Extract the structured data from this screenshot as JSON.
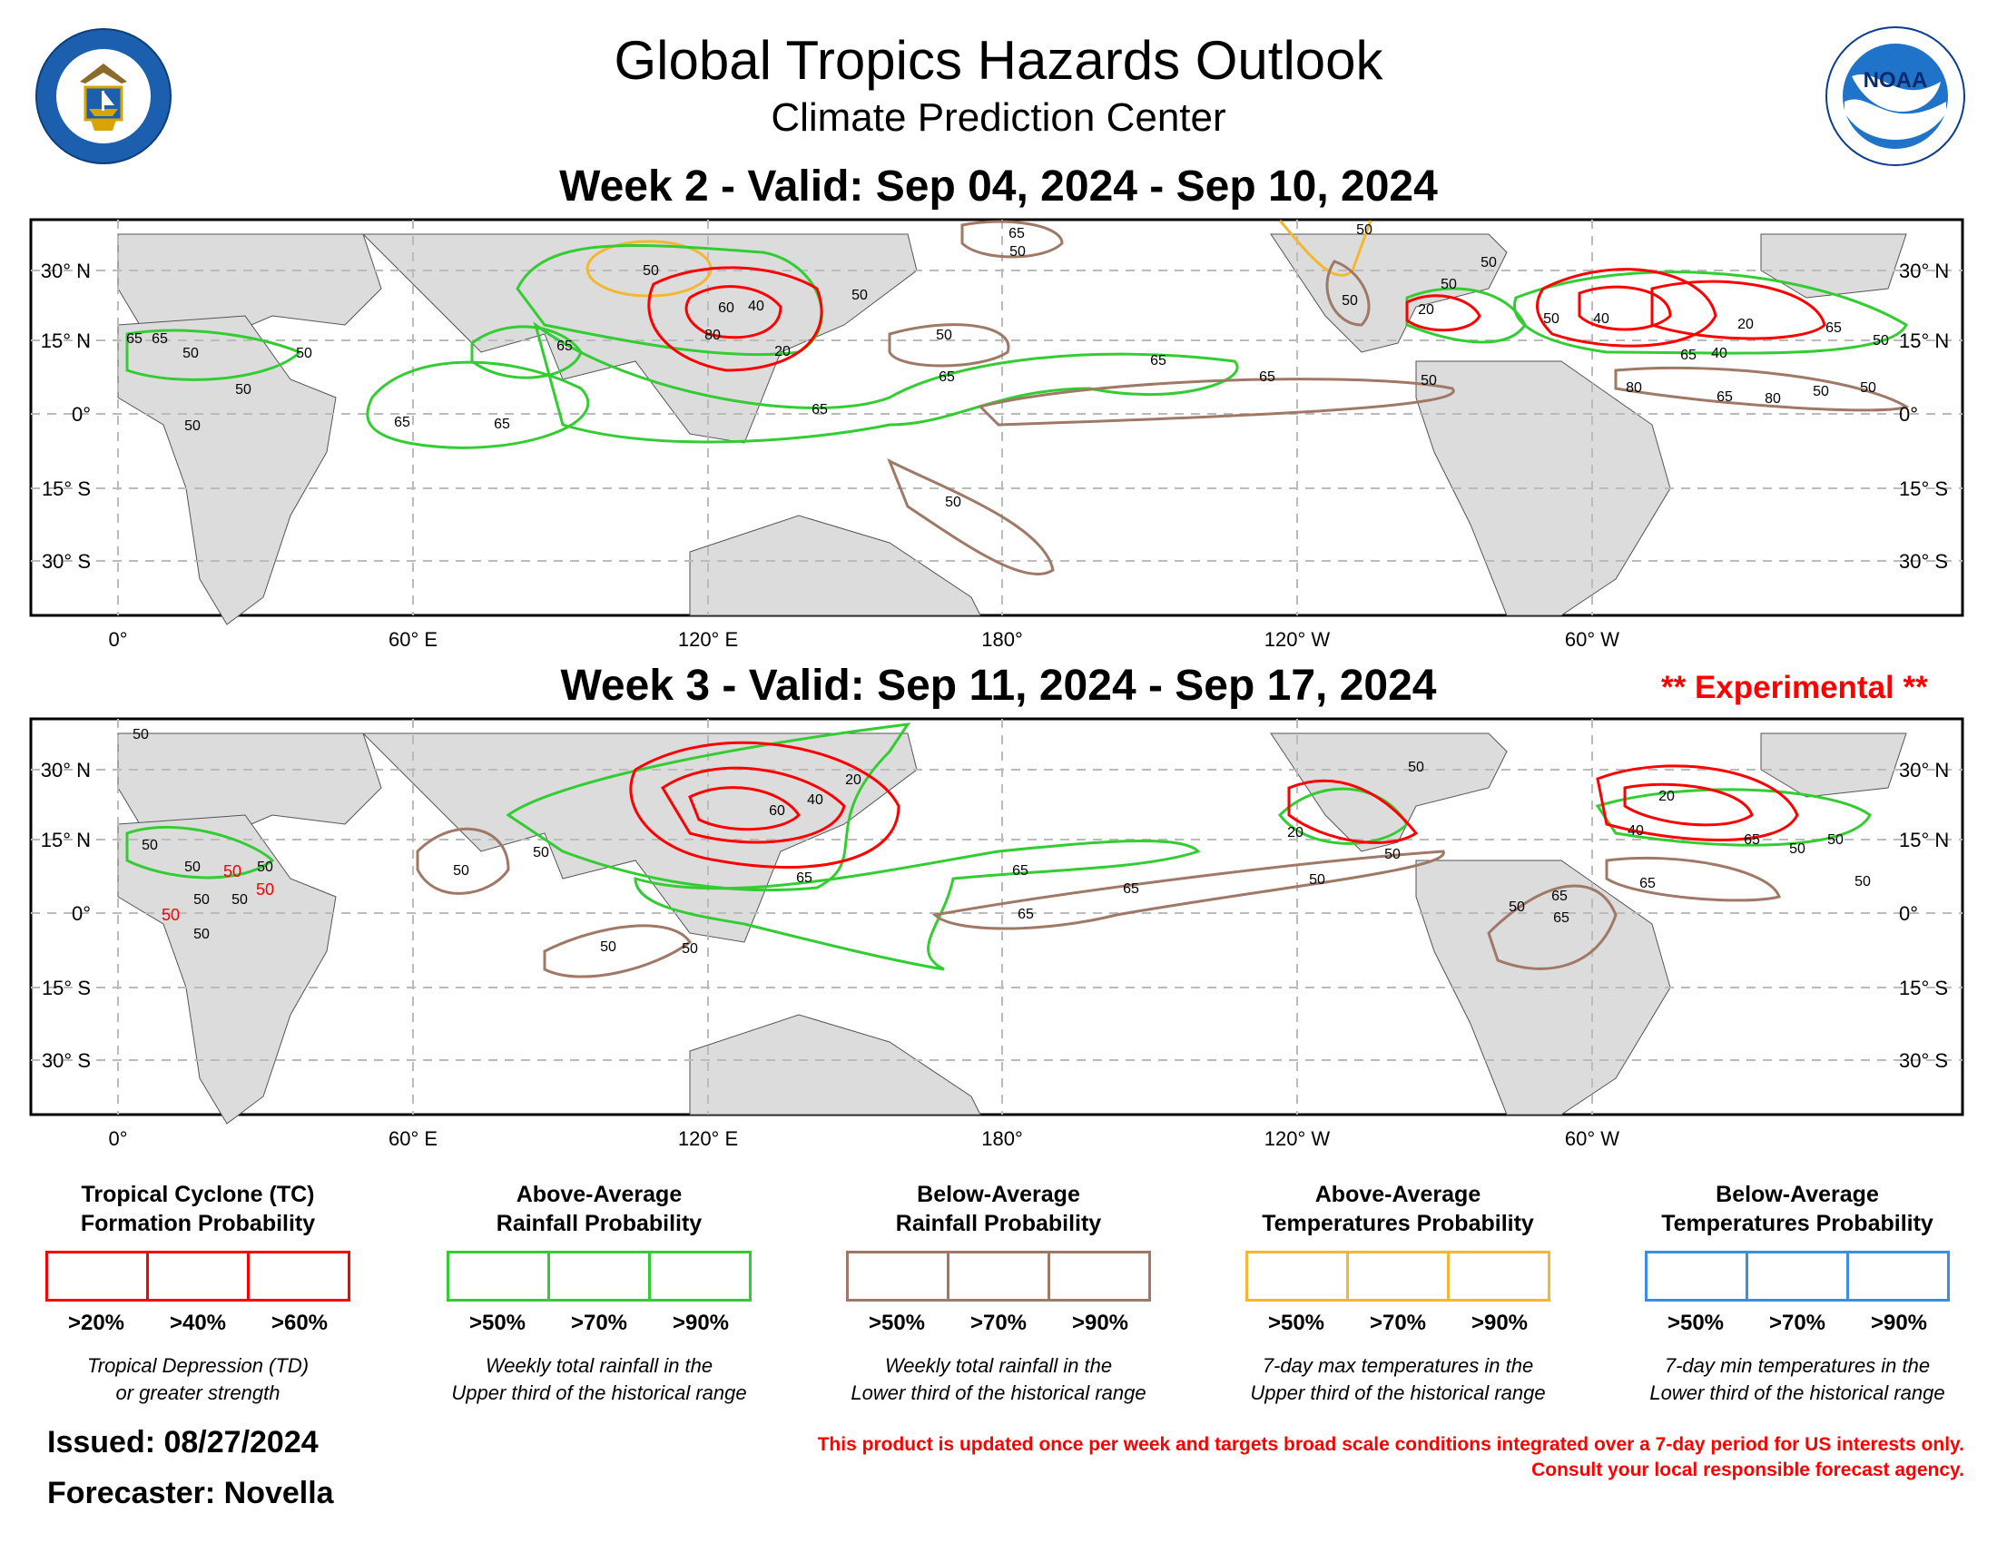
{
  "header": {
    "title": "Global Tropics Hazards Outlook",
    "subtitle": "Climate Prediction Center",
    "logo_left": "DEPARTMENT OF COMMERCE · UNITED STATES OF AMERICA",
    "logo_right": "NOAA · NATIONAL OCEANIC AND ATMOSPHERIC ADMINISTRATION · U.S. DEPARTMENT OF COMMERCE"
  },
  "week2": {
    "title": "Week 2 - Valid: Sep 04, 2024 - Sep 10, 2024"
  },
  "week3": {
    "title": "Week 3 - Valid: Sep 11, 2024 - Sep 17, 2024",
    "badge": "** Experimental **"
  },
  "axes": {
    "lat_left": [
      "30° N",
      "15° N",
      "0°",
      "15° S",
      "30° S"
    ],
    "lat_right": [
      "30° N",
      "15° N",
      "0°",
      "15° S",
      "30° S"
    ],
    "lon": [
      "0°",
      "60° E",
      "120° E",
      "180°",
      "120° W",
      "60° W"
    ]
  },
  "contour_labels": {
    "w2": [
      "65",
      "65",
      "50",
      "50",
      "50",
      "50",
      "65",
      "65",
      "50",
      "80",
      "60",
      "40",
      "20",
      "65",
      "50",
      "50",
      "65",
      "50",
      "65",
      "65",
      "65",
      "50",
      "65",
      "50",
      "50",
      "50",
      "20",
      "50",
      "50",
      "40",
      "20",
      "65",
      "40",
      "80",
      "65",
      "80",
      "50",
      "50",
      "65",
      "50",
      "50"
    ],
    "w3": [
      "50",
      "50",
      "50",
      "50",
      "50",
      "50",
      "50",
      "50",
      "50",
      "50",
      "50",
      "50",
      "50",
      "20",
      "40",
      "60",
      "65",
      "65",
      "65",
      "65",
      "50",
      "20",
      "50",
      "50",
      "65",
      "65",
      "50",
      "20",
      "40",
      "65",
      "50",
      "50",
      "50",
      "65",
      "50"
    ]
  },
  "legend": [
    {
      "title_line1": "Tropical Cyclone (TC)",
      "title_line2": "Formation Probability",
      "color": "#ff0000",
      "labels": [
        ">20%",
        ">40%",
        ">60%"
      ],
      "desc_line1": "Tropical Depression (TD)",
      "desc_line2": "or greater strength"
    },
    {
      "title_line1": "Above-Average",
      "title_line2": "Rainfall Probability",
      "color": "#33cc33",
      "labels": [
        ">50%",
        ">70%",
        ">90%"
      ],
      "desc_line1": "Weekly total rainfall in the",
      "desc_line2": "Upper third of the historical range"
    },
    {
      "title_line1": "Below-Average",
      "title_line2": "Rainfall Probability",
      "color": "#a07866",
      "labels": [
        ">50%",
        ">70%",
        ">90%"
      ],
      "desc_line1": "Weekly total rainfall in the",
      "desc_line2": "Lower third of the historical range"
    },
    {
      "title_line1": "Above-Average",
      "title_line2": "Temperatures Probability",
      "color": "#f5b731",
      "labels": [
        ">50%",
        ">70%",
        ">90%"
      ],
      "desc_line1": "7-day max temperatures in the",
      "desc_line2": "Upper third of the historical range"
    },
    {
      "title_line1": "Below-Average",
      "title_line2": "Temperatures Probability",
      "color": "#3a8fe0",
      "labels": [
        ">50%",
        ">70%",
        ">90%"
      ],
      "desc_line1": "7-day min temperatures in the",
      "desc_line2": "Lower third of the historical range"
    }
  ],
  "footer": {
    "issued": "Issued: 08/27/2024",
    "forecaster": "Forecaster: Novella",
    "disclaimer_line1": "This product is updated once per week and targets broad scale conditions integrated over a 7-day period for US interests only.",
    "disclaimer_line2": "Consult your local responsible forecast agency."
  },
  "colors": {
    "tc": "#ff0000",
    "rain_above": "#33cc33",
    "rain_below": "#a07866",
    "temp_above": "#f5b731",
    "temp_below": "#3a8fe0",
    "land": "#dcdcdc",
    "coast": "#444444"
  }
}
